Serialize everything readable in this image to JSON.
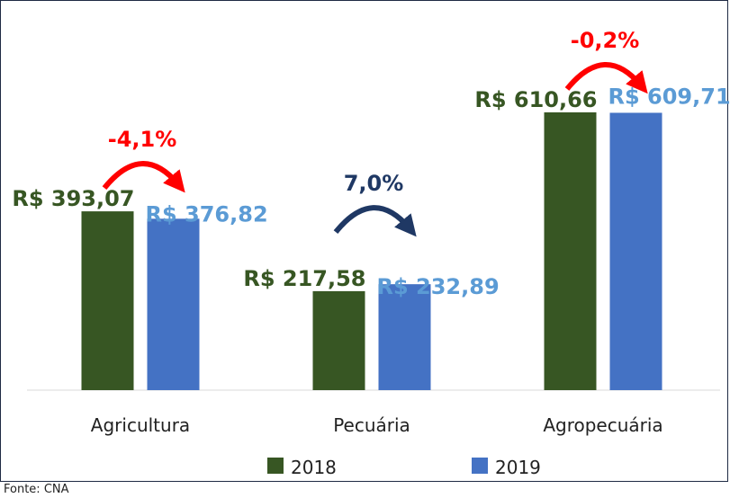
{
  "chart_data": {
    "type": "bar",
    "categories": [
      "Agricultura",
      "Pecuária",
      "Agropecuária"
    ],
    "series": [
      {
        "name": "2018",
        "values": [
          393.07,
          217.58,
          610.66
        ],
        "labels": [
          "R$ 393,07",
          "R$ 217,58",
          "R$ 610,66"
        ]
      },
      {
        "name": "2019",
        "values": [
          376.82,
          232.89,
          609.71
        ],
        "labels": [
          "R$ 376,82",
          "R$ 232,89",
          "R$ 609,71"
        ]
      }
    ],
    "changes": [
      {
        "label": "-4,1%",
        "direction": "down"
      },
      {
        "label": "7,0%",
        "direction": "up"
      },
      {
        "label": "-0,2%",
        "direction": "down"
      }
    ],
    "ylim": [
      0,
      610.66
    ],
    "grid": false,
    "legend": "bottom"
  },
  "colors": {
    "series_2018": "#375623",
    "series_2019": "#4472c4",
    "label_2019": "#5b9bd5",
    "change_down": "#ff0000",
    "change_up": "#1f3864"
  },
  "source": "Fonte: CNA"
}
